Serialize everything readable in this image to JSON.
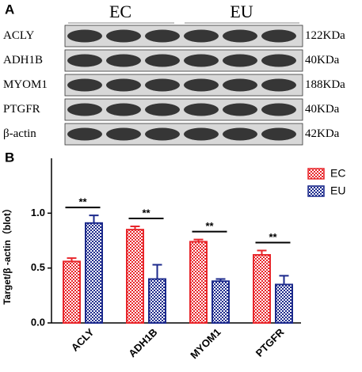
{
  "panel_a": {
    "label": "A",
    "groups": [
      "EC",
      "EU"
    ],
    "rows": [
      {
        "protein": "ACLY",
        "size": "122KDa"
      },
      {
        "protein": "ADH1B",
        "size": "40KDa"
      },
      {
        "protein": "MYOM1",
        "size": "188KDa"
      },
      {
        "protein": "PTGFR",
        "size": "40KDa"
      },
      {
        "protein": "β-actin",
        "size": "42KDa"
      }
    ]
  },
  "chart_data": {
    "type": "bar",
    "panel_label": "B",
    "y_label": "Target/β -actin（blot）",
    "categories": [
      "ACLY",
      "ADH1B",
      "MYOM1",
      "PTGFR"
    ],
    "series": [
      {
        "name": "EC",
        "color": "#e8262b",
        "values": [
          0.56,
          0.85,
          0.74,
          0.62
        ],
        "errors": [
          0.03,
          0.03,
          0.02,
          0.04
        ]
      },
      {
        "name": "EU",
        "color": "#1c2a8c",
        "values": [
          0.91,
          0.4,
          0.38,
          0.35
        ],
        "errors": [
          0.07,
          0.13,
          0.02,
          0.08
        ]
      }
    ],
    "ylim": [
      0,
      1.5
    ],
    "yticks": [
      {
        "value": 0,
        "label": "0.0"
      },
      {
        "value": 0.5,
        "label": "0.5"
      },
      {
        "value": 1.0,
        "label": "1.0"
      }
    ],
    "annotations": [
      "**",
      "**",
      "**",
      "**"
    ],
    "legend": "top-right"
  }
}
